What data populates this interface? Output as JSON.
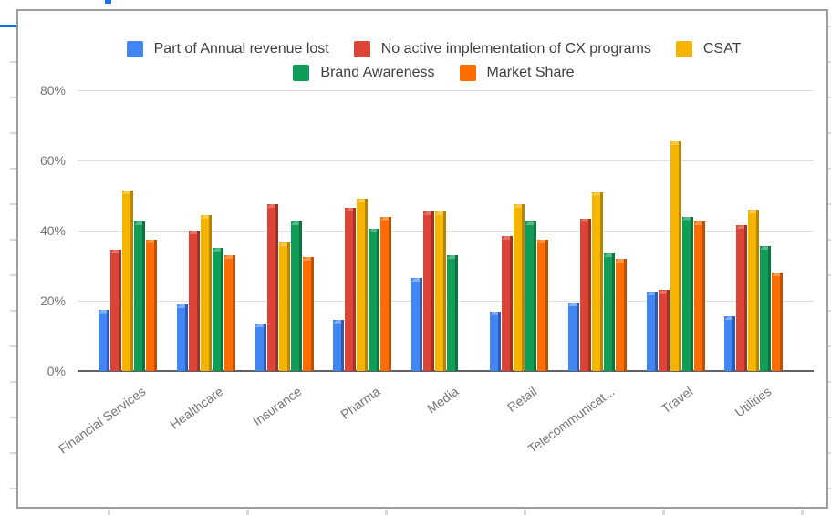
{
  "chart_data": {
    "type": "bar",
    "title": "",
    "categories": [
      "Financial Services",
      "Healthcare",
      "Insurance",
      "Pharma",
      "Media",
      "Retail",
      "Telecommunicat...",
      "Travel",
      "Utilities"
    ],
    "series": [
      {
        "name": "Part of Annual revenue lost",
        "color": "#4285f4",
        "color_dark": "#2d5db3",
        "color_light": "#82b0f8",
        "values": [
          17.5,
          19,
          13.5,
          14.5,
          26.5,
          17,
          19.5,
          22.5,
          15.5
        ]
      },
      {
        "name": "No active implementation of CX programs",
        "color": "#db4437",
        "color_dark": "#a33225",
        "color_light": "#e57368",
        "values": [
          34.5,
          40,
          47.5,
          46.5,
          45.5,
          38.5,
          43.5,
          23,
          41.5
        ]
      },
      {
        "name": "CSAT",
        "color": "#f4b400",
        "color_dark": "#b68600",
        "color_light": "#f8cb4d",
        "values": [
          51.5,
          44.5,
          36.5,
          49,
          45.5,
          47.5,
          51,
          65.5,
          46
        ]
      },
      {
        "name": "Brand Awareness",
        "color": "#0f9d58",
        "color_dark": "#0b7441",
        "color_light": "#57ba8a",
        "values": [
          42.5,
          35,
          42.5,
          40.5,
          33,
          42.5,
          33.5,
          44,
          35.5
        ]
      },
      {
        "name": "Market Share",
        "color": "#ff6d00",
        "color_dark": "#bd5100",
        "color_light": "#ff9a4d",
        "values": [
          37.5,
          33,
          32.5,
          44,
          0,
          37.5,
          32,
          42.5,
          28
        ]
      }
    ],
    "y_axis": {
      "tick_labels": [
        "0%",
        "20%",
        "40%",
        "60%",
        "80%"
      ],
      "ticks_percent": [
        0,
        20,
        40,
        60,
        80
      ],
      "ylim": [
        0,
        86
      ],
      "grid": true
    },
    "legend_position": "top",
    "legend_rows": [
      [
        0,
        1,
        2
      ],
      [
        3,
        4
      ]
    ]
  },
  "colors": {
    "frame_border": "#9e9e9e",
    "gridline": "#e0e0e0",
    "axis_line": "#5f6368",
    "axis_text": "#757575",
    "legend_text": "#3c4043",
    "selection_blue": "#1a73e8",
    "edge_tick": "#d9d9d9"
  }
}
